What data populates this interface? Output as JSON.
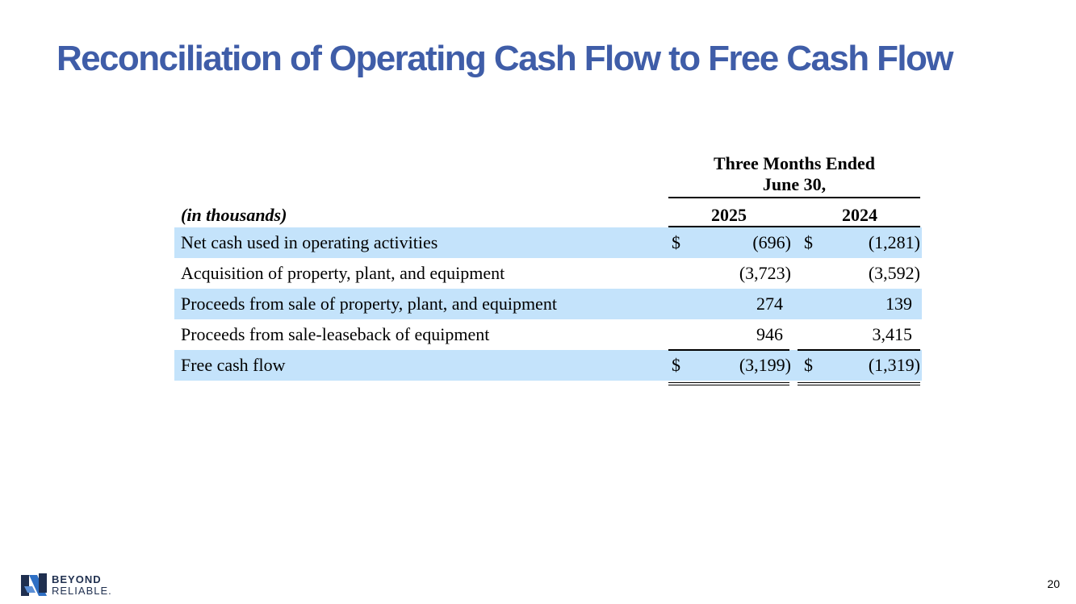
{
  "slide": {
    "title": "Reconciliation of Operating Cash Flow to Free Cash Flow",
    "page_number": "20"
  },
  "table": {
    "period_header": "Three Months Ended\nJune 30,",
    "units_label": "(in thousands)",
    "years": [
      "2025",
      "2024"
    ],
    "rows": [
      {
        "label": "Net cash used in operating activities",
        "cur_2025": "$",
        "val_2025": "(696)",
        "cur_2024": "$",
        "val_2024": "(1,281)"
      },
      {
        "label": "Acquisition of property, plant, and equipment",
        "cur_2025": "",
        "val_2025": "(3,723)",
        "cur_2024": "",
        "val_2024": "(3,592)"
      },
      {
        "label": "Proceeds from sale of property, plant, and equipment",
        "cur_2025": "",
        "val_2025": "274",
        "cur_2024": "",
        "val_2024": "139"
      },
      {
        "label": "Proceeds from sale-leaseback of equipment",
        "cur_2025": "",
        "val_2025": "946",
        "cur_2024": "",
        "val_2024": "3,415"
      },
      {
        "label": "Free cash flow",
        "cur_2025": "$",
        "val_2025": "(3,199)",
        "cur_2024": "$",
        "val_2024": "(1,319)"
      }
    ]
  },
  "logo": {
    "line1": "BEYOND",
    "line2": "RELIABLE."
  },
  "colors": {
    "title": "#3f5da8",
    "row_shade": "#c4e3fb",
    "logo_dark": "#1f2f4f",
    "logo_blue": "#2e6fc4"
  }
}
